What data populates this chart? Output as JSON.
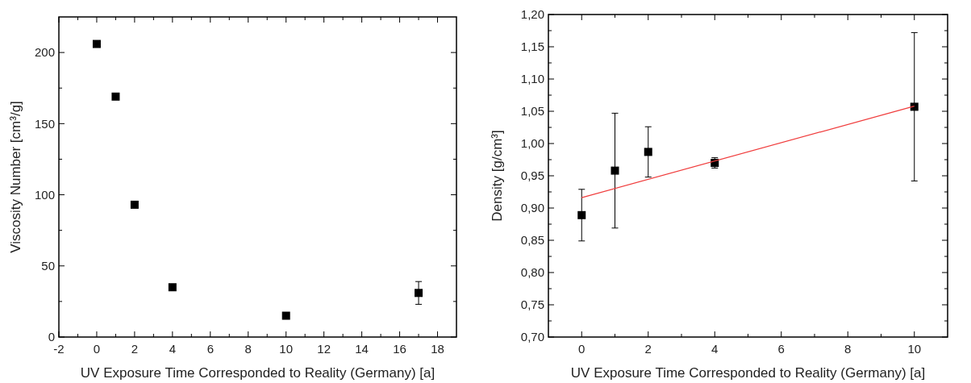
{
  "chart_data": [
    {
      "type": "scatter",
      "xlabel": "UV Exposure Time Corresponded to Reality (Germany) [a]",
      "ylabel": "Viscosity Number [cm³/g]",
      "x": [
        0,
        1,
        2,
        4,
        10,
        17
      ],
      "values": [
        206,
        169,
        93,
        35,
        15,
        31
      ],
      "errors": [
        null,
        null,
        null,
        null,
        2,
        8
      ],
      "color": "#000000",
      "marker": "square",
      "xlim": [
        -2,
        19
      ],
      "xticks": [
        -2,
        0,
        2,
        4,
        6,
        8,
        10,
        12,
        14,
        16,
        18
      ],
      "ylim": [
        0,
        225
      ],
      "yticks": [
        0,
        50,
        100,
        150,
        200
      ],
      "grid": false
    },
    {
      "type": "scatter",
      "xlabel": "UV Exposure Time Corresponded to Reality (Germany) [a]",
      "ylabel": "Density [g/cm³]",
      "xlim": [
        -1,
        11
      ],
      "xticks": [
        0,
        2,
        4,
        6,
        8,
        10
      ],
      "ylim": [
        0.7,
        1.2
      ],
      "yticks": [
        {
          "value": 0.7,
          "label": "0,70"
        },
        {
          "value": 0.75,
          "label": "0,75"
        },
        {
          "value": 0.8,
          "label": "0,80"
        },
        {
          "value": 0.85,
          "label": "0,85"
        },
        {
          "value": 0.9,
          "label": "0,90"
        },
        {
          "value": 0.95,
          "label": "0,95"
        },
        {
          "value": 1.0,
          "label": "1,00"
        },
        {
          "value": 1.05,
          "label": "1,05"
        },
        {
          "value": 1.1,
          "label": "1,10"
        },
        {
          "value": 1.15,
          "label": "1,15"
        },
        {
          "value": 1.2,
          "label": "1,20"
        }
      ],
      "grid": false,
      "series": [
        {
          "marker": "square",
          "color": "#000000",
          "x": [
            0,
            1,
            2,
            4,
            10
          ],
          "values": [
            0.889,
            0.958,
            0.987,
            0.97,
            1.057
          ],
          "errors": [
            0.04,
            0.089,
            0.039,
            0.008,
            0.115
          ]
        },
        {
          "type": "line",
          "marker": "none",
          "color": "#f03c3c",
          "x": [
            0,
            10
          ],
          "values": [
            0.916,
            1.058
          ]
        }
      ]
    }
  ]
}
